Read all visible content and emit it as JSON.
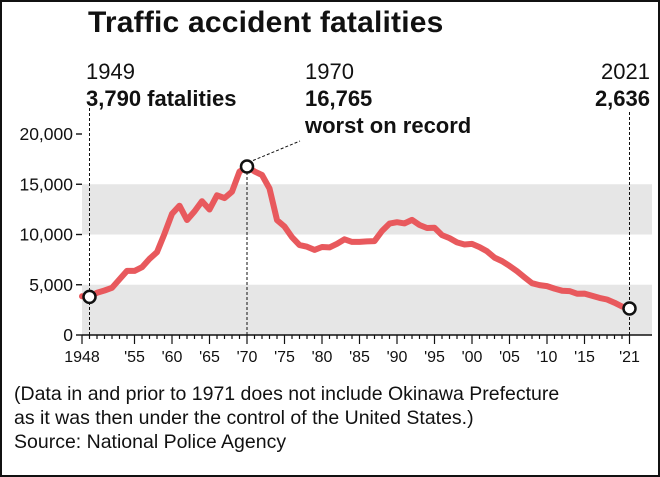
{
  "chart_data": {
    "type": "line",
    "title": "Traffic accident fatalities",
    "ylim": [
      0,
      20000
    ],
    "xlim": [
      1948,
      2021
    ],
    "yticks": [
      0,
      5000,
      10000,
      15000,
      20000
    ],
    "yticklabels": [
      "0",
      "5,000",
      "10,000",
      "15,000",
      "20,000"
    ],
    "xticks": [
      1948,
      1955,
      1960,
      1965,
      1970,
      1975,
      1980,
      1985,
      1990,
      1995,
      2000,
      2005,
      2010,
      2015,
      2021
    ],
    "xticklabels": [
      "1948",
      "'55",
      "'60",
      "'65",
      "'70",
      "'75",
      "'80",
      "'85",
      "'90",
      "'95",
      "'00",
      "'05",
      "'10",
      "'15",
      "'21"
    ],
    "bands": [
      [
        0,
        5000
      ],
      [
        10000,
        15000
      ]
    ],
    "series": [
      {
        "color": "#e8595d",
        "x": [
          1948,
          1949,
          1950,
          1951,
          1952,
          1953,
          1954,
          1955,
          1956,
          1957,
          1958,
          1959,
          1960,
          1961,
          1962,
          1963,
          1964,
          1965,
          1966,
          1967,
          1968,
          1969,
          1970,
          1971,
          1972,
          1973,
          1974,
          1975,
          1976,
          1977,
          1978,
          1979,
          1980,
          1981,
          1982,
          1983,
          1984,
          1985,
          1986,
          1987,
          1988,
          1989,
          1990,
          1991,
          1992,
          1993,
          1994,
          1995,
          1996,
          1997,
          1998,
          1999,
          2000,
          2001,
          2002,
          2003,
          2004,
          2005,
          2006,
          2007,
          2008,
          2009,
          2010,
          2011,
          2012,
          2013,
          2014,
          2015,
          2016,
          2017,
          2018,
          2019,
          2020,
          2021
        ],
        "y": [
          3848,
          3790,
          4202,
          4429,
          4696,
          5544,
          6374,
          6379,
          6751,
          7575,
          8248,
          10079,
          12055,
          12865,
          11445,
          12301,
          13318,
          12484,
          13904,
          13618,
          14256,
          16257,
          16765,
          16278,
          15918,
          14574,
          11432,
          10792,
          9734,
          8945,
          8783,
          8466,
          8760,
          8719,
          9073,
          9520,
          9262,
          9261,
          9317,
          9347,
          10344,
          11086,
          11227,
          11105,
          11451,
          10942,
          10649,
          10679,
          9942,
          9640,
          9211,
          9006,
          9066,
          8747,
          8326,
          7702,
          7358,
          6871,
          6352,
          5744,
          5155,
          4968,
          4863,
          4612,
          4411,
          4373,
          4113,
          4117,
          3904,
          3694,
          3532,
          3215,
          2839,
          2636
        ]
      }
    ],
    "annotations": [
      {
        "year": "1949",
        "value": 3790,
        "label": "3,790 fatalities"
      },
      {
        "year": "1970",
        "value": 16765,
        "label": "16,765",
        "sublabel": "worst on record"
      },
      {
        "year": "2021",
        "value": 2636,
        "label": "2,636"
      }
    ],
    "notes": [
      "(Data in and prior to 1971 does not include Okinawa Prefecture",
      "as it was then under the control of the United States.)"
    ],
    "source": "Source: National Police Agency"
  }
}
